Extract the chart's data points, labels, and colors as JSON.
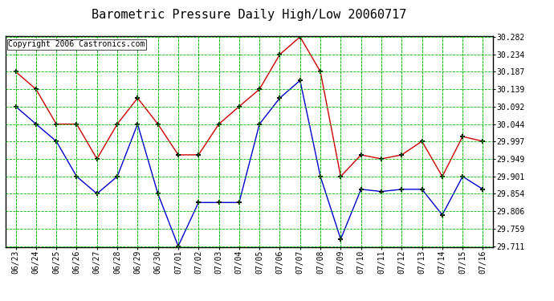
{
  "title": "Barometric Pressure Daily High/Low 20060717",
  "copyright": "Copyright 2006 Castronics.com",
  "dates": [
    "06/23",
    "06/24",
    "06/25",
    "06/26",
    "06/27",
    "06/28",
    "06/29",
    "06/30",
    "07/01",
    "07/02",
    "07/03",
    "07/04",
    "07/05",
    "07/06",
    "07/07",
    "07/08",
    "07/09",
    "07/10",
    "07/11",
    "07/12",
    "07/13",
    "07/14",
    "07/15",
    "07/16"
  ],
  "high": [
    30.187,
    30.139,
    30.044,
    30.044,
    29.949,
    30.044,
    30.115,
    30.044,
    29.96,
    29.96,
    30.044,
    30.092,
    30.139,
    30.234,
    30.282,
    30.187,
    29.901,
    29.96,
    29.949,
    29.96,
    29.997,
    29.901,
    30.01,
    29.997
  ],
  "low": [
    30.092,
    30.044,
    29.997,
    29.901,
    29.854,
    29.901,
    30.044,
    29.854,
    29.711,
    29.83,
    29.83,
    29.83,
    30.044,
    30.115,
    30.163,
    29.901,
    29.73,
    29.866,
    29.86,
    29.866,
    29.866,
    29.796,
    29.901,
    29.866
  ],
  "ylim_min": 29.711,
  "ylim_max": 30.282,
  "yticks": [
    29.711,
    29.759,
    29.806,
    29.854,
    29.901,
    29.949,
    29.997,
    30.044,
    30.092,
    30.139,
    30.187,
    30.234,
    30.282
  ],
  "high_color": "#cc0000",
  "low_color": "#0000cc",
  "grid_color": "#00bb00",
  "bg_color": "#ffffff",
  "plot_bg_color": "#ffffff",
  "title_fontsize": 11,
  "tick_fontsize": 7,
  "copyright_fontsize": 7
}
